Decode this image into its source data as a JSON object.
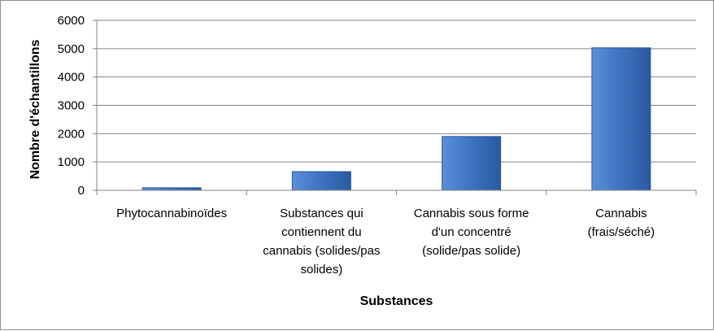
{
  "chart_data": {
    "type": "bar",
    "categories": [
      [
        "Phytocannabinoïdes"
      ],
      [
        "Substances qui",
        "contiennent du",
        "cannabis (solides/pas",
        "solides)"
      ],
      [
        "Cannabis sous forme",
        "d'un concentré",
        "(solide/pas solide)"
      ],
      [
        "Cannabis",
        "(frais/séché)"
      ]
    ],
    "values": [
      90,
      660,
      1900,
      5030
    ],
    "title": "",
    "xlabel": "Substances",
    "ylabel": "Nombre d'échantillons",
    "ylim": [
      0,
      6000
    ],
    "yticks": [
      0,
      1000,
      2000,
      3000,
      4000,
      5000,
      6000
    ],
    "grid": true,
    "legend": "none",
    "colors": {
      "bar_top": "#5b8fd6",
      "bar_mid": "#3f75c4",
      "bar_bottom": "#2a5aa0",
      "bar_edge": "#2b5797",
      "grid": "#868686"
    }
  }
}
